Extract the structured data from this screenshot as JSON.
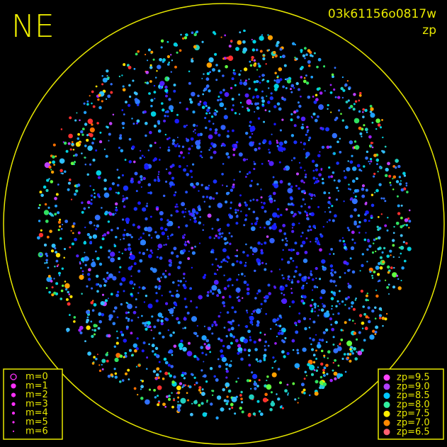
{
  "header": {
    "corner_label": "NE",
    "frame_id": "03k61156o0817w",
    "quantity": "zp"
  },
  "magnitude_legend": {
    "items": [
      "m=0",
      "m=1",
      "m=2",
      "m=3",
      "m=4",
      "m=5",
      "m=6"
    ]
  },
  "zp_legend": {
    "items": [
      {
        "label": "zp=9.5",
        "color": "#ff44ff"
      },
      {
        "label": "zp=9.0",
        "color": "#b040ff"
      },
      {
        "label": "zp=8.5",
        "color": "#00c8ff"
      },
      {
        "label": "zp=8.0",
        "color": "#30f0a0"
      },
      {
        "label": "zp=7.5",
        "color": "#ffee00"
      },
      {
        "label": "zp=7.0",
        "color": "#ff8800"
      },
      {
        "label": "zp=6.5",
        "color": "#ff6070"
      }
    ]
  }
}
